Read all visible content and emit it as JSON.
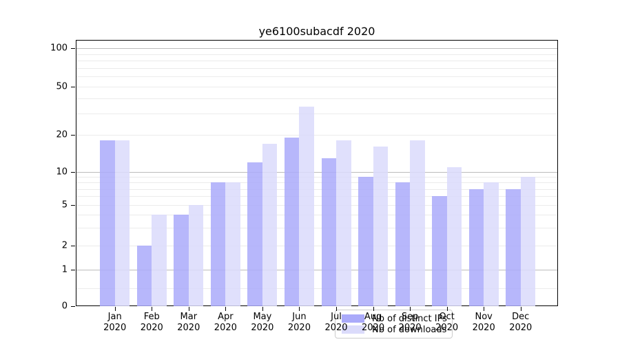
{
  "title": "ye6100subacdf 2020",
  "legend": {
    "items": [
      {
        "label": "Nb of distinct IPs",
        "color": "#aaaafa"
      },
      {
        "label": "Nb of downloads",
        "color": "#dbdbfb"
      }
    ]
  },
  "y_axis": {
    "ticks": [
      {
        "label": "100",
        "value": 100
      },
      {
        "label": "50",
        "value": 50
      },
      {
        "label": "20",
        "value": 20
      },
      {
        "label": "10",
        "value": 10
      },
      {
        "label": "5",
        "value": 5
      },
      {
        "label": "2",
        "value": 2
      },
      {
        "label": "1",
        "value": 1
      },
      {
        "label": "0",
        "value": 0
      }
    ]
  },
  "x_axis": {
    "labels": [
      {
        "month": "Jan",
        "year": "2020"
      },
      {
        "month": "Feb",
        "year": "2020"
      },
      {
        "month": "Mar",
        "year": "2020"
      },
      {
        "month": "Apr",
        "year": "2020"
      },
      {
        "month": "May",
        "year": "2020"
      },
      {
        "month": "Jun",
        "year": "2020"
      },
      {
        "month": "Jul",
        "year": "2020"
      },
      {
        "month": "Aug",
        "year": "2020"
      },
      {
        "month": "Sep",
        "year": "2020"
      },
      {
        "month": "Oct",
        "year": "2020"
      },
      {
        "month": "Nov",
        "year": "2020"
      },
      {
        "month": "Dec",
        "year": "2020"
      }
    ]
  },
  "chart_data": {
    "type": "bar",
    "title": "ye6100subacdf 2020",
    "categories": [
      "Jan 2020",
      "Feb 2020",
      "Mar 2020",
      "Apr 2020",
      "May 2020",
      "Jun 2020",
      "Jul 2020",
      "Aug 2020",
      "Sep 2020",
      "Oct 2020",
      "Nov 2020",
      "Dec 2020"
    ],
    "series": [
      {
        "name": "Nb of distinct IPs",
        "color": "#aaaafa",
        "values": [
          18,
          2,
          4,
          8,
          12,
          19,
          13,
          9,
          8,
          6,
          7,
          7
        ]
      },
      {
        "name": "Nb of downloads",
        "color": "#dbdbfb",
        "values": [
          18,
          4,
          5,
          8,
          17,
          34,
          18,
          16,
          18,
          11,
          8,
          9
        ]
      }
    ],
    "yscale": "log-like (0, 1, 2, 5, 10, 20, 50, 100)",
    "y_ticks": [
      0,
      1,
      2,
      5,
      10,
      20,
      50,
      100
    ],
    "ylim": [
      0,
      100
    ],
    "grid": "horizontal, major at 1/10/100 and faint minor log lines",
    "legend_position": "lower center"
  }
}
